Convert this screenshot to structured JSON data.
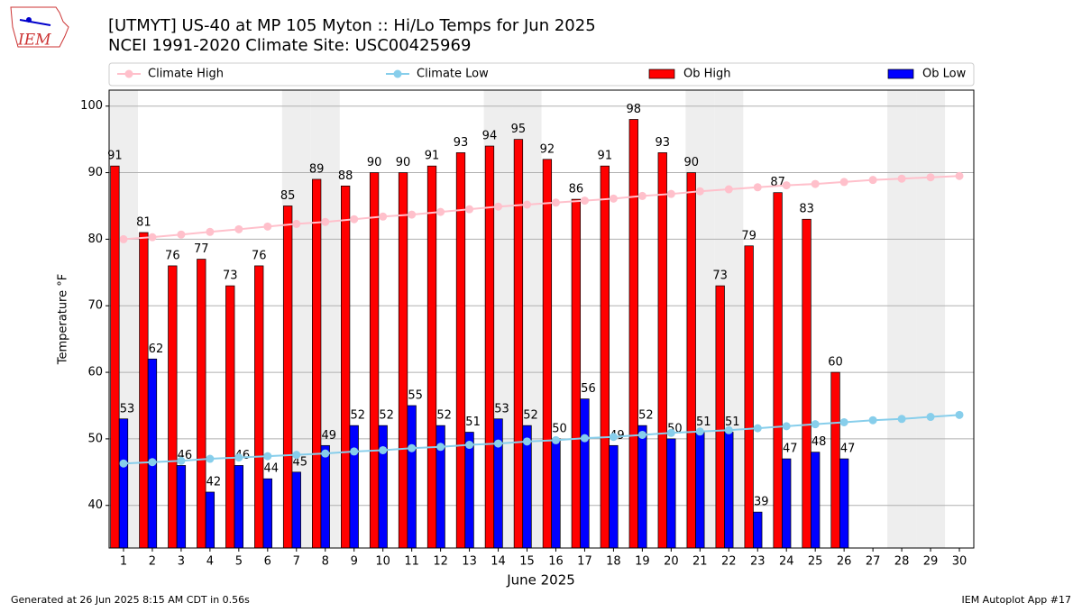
{
  "logo_text": "IEM",
  "chart_data": {
    "type": "bar",
    "title": "[UTMYT] US-40 at MP 105 Myton  :: Hi/Lo Temps for Jun 2025",
    "subtitle": "NCEI 1991-2020 Climate Site: USC00425969",
    "x_label": "June 2025",
    "y_label": "Temperature °F",
    "footer_left": "Generated at 26 Jun 2025 8:15 AM CDT in 0.56s",
    "footer_right": "IEM Autoplot App #17",
    "x": [
      1,
      2,
      3,
      4,
      5,
      6,
      7,
      8,
      9,
      10,
      11,
      12,
      13,
      14,
      15,
      16,
      17,
      18,
      19,
      20,
      21,
      22,
      23,
      24,
      25,
      26,
      27,
      28,
      29,
      30
    ],
    "xlim": [
      0.5,
      30.5
    ],
    "xticks": [
      1,
      2,
      3,
      4,
      5,
      6,
      7,
      8,
      9,
      10,
      11,
      12,
      13,
      14,
      15,
      16,
      17,
      18,
      19,
      20,
      21,
      22,
      23,
      24,
      25,
      26,
      27,
      28,
      29,
      30
    ],
    "ylim": [
      33.6,
      102.4
    ],
    "yticks": [
      40,
      50,
      60,
      70,
      80,
      90,
      100
    ],
    "grid": true,
    "shaded_days": [
      1,
      7,
      8,
      14,
      15,
      21,
      22,
      28,
      29
    ],
    "series": [
      {
        "name": "Climate High",
        "type": "line",
        "color": "#ffc0cb",
        "values": [
          80.0,
          80.3,
          80.7,
          81.1,
          81.5,
          81.9,
          82.3,
          82.6,
          83.0,
          83.4,
          83.7,
          84.1,
          84.5,
          84.9,
          85.2,
          85.5,
          85.8,
          86.1,
          86.5,
          86.8,
          87.2,
          87.5,
          87.8,
          88.1,
          88.3,
          88.6,
          88.9,
          89.1,
          89.3,
          89.5
        ]
      },
      {
        "name": "Climate Low",
        "type": "line",
        "color": "#87ceeb",
        "values": [
          46.3,
          46.5,
          46.7,
          47.0,
          47.2,
          47.4,
          47.6,
          47.8,
          48.1,
          48.3,
          48.6,
          48.8,
          49.1,
          49.3,
          49.6,
          49.8,
          50.1,
          50.3,
          50.6,
          50.9,
          51.1,
          51.3,
          51.6,
          51.9,
          52.2,
          52.5,
          52.8,
          53.0,
          53.3,
          53.6
        ]
      },
      {
        "name": "Ob High",
        "type": "bar",
        "color": "#ff0000",
        "values": [
          91,
          81,
          76,
          77,
          73,
          76,
          85,
          89,
          88,
          90,
          90,
          91,
          93,
          94,
          95,
          92,
          86,
          91,
          98,
          93,
          90,
          73,
          79,
          87,
          83,
          60,
          null,
          null,
          null,
          null
        ]
      },
      {
        "name": "Ob Low",
        "type": "bar",
        "color": "#0000ff",
        "values": [
          53,
          62,
          46,
          42,
          46,
          44,
          45,
          49,
          52,
          52,
          55,
          52,
          51,
          53,
          52,
          50,
          56,
          49,
          52,
          50,
          51,
          51,
          39,
          47,
          48,
          47,
          null,
          null,
          null,
          null
        ]
      }
    ]
  }
}
